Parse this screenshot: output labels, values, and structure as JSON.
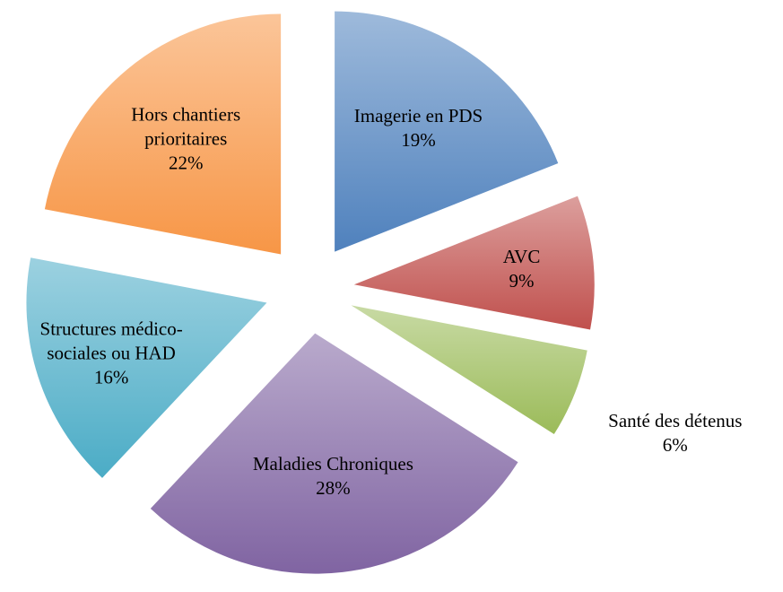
{
  "chart_data": {
    "type": "pie",
    "categories": [
      "Imagerie en PDS",
      "AVC",
      "Santé des détenus",
      "Maladies Chroniques",
      "Structures médico-sociales ou HAD",
      "Hors chantiers prioritaires"
    ],
    "values": [
      19,
      9,
      6,
      28,
      16,
      22
    ],
    "value_labels": [
      "19%",
      "9%",
      "6%",
      "28%",
      "16%",
      "22%"
    ],
    "colors": [
      "#4f81bd",
      "#c0504d",
      "#9bbb59",
      "#8064a2",
      "#4bacc6",
      "#f79646"
    ]
  }
}
